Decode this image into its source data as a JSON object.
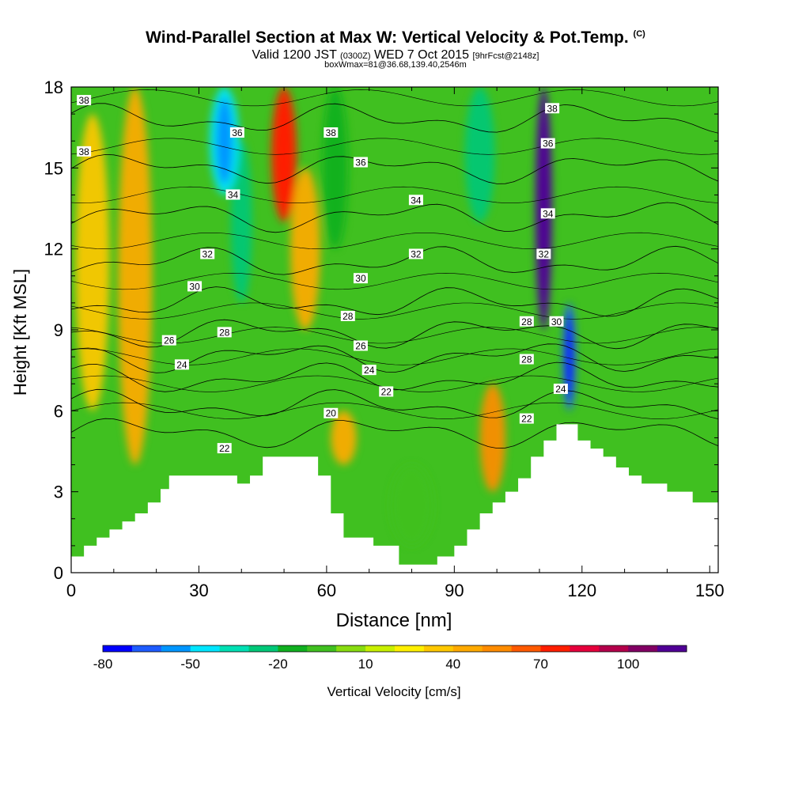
{
  "header": {
    "title": "Wind-Parallel Section at Max W: Vertical Velocity & Pot.Temp.",
    "copyright": "(C)",
    "valid_prefix": "Valid 1200 JST",
    "valid_zulu": "(0300Z)",
    "valid_date": "WED 7 Oct 2015",
    "forecast": "[9hrFcst@2148z]",
    "boxwmax": "boxWmax=81@36.68,139.40,2546m"
  },
  "chart_data": {
    "type": "heatmap",
    "title": "Wind-Parallel Section at Max W: Vertical Velocity & Pot.Temp.",
    "xlabel": "Distance [nm]",
    "ylabel": "Height [Kft MSL]",
    "xlim": [
      0,
      152
    ],
    "ylim": [
      0,
      18
    ],
    "x_ticks": [
      "0",
      "30",
      "60",
      "90",
      "120",
      "150"
    ],
    "y_ticks": [
      "0",
      "3",
      "6",
      "9",
      "12",
      "15",
      "18"
    ],
    "colorbar": {
      "label": "Vertical Velocity [cm/s]",
      "tick_labels": [
        "-80",
        "-50",
        "-20",
        "10",
        "40",
        "70",
        "100"
      ],
      "colors": [
        "#0000ff",
        "#1e5cff",
        "#0096ff",
        "#00e6ff",
        "#00e0b4",
        "#00c878",
        "#10b020",
        "#40c020",
        "#88dc10",
        "#c8f000",
        "#fff000",
        "#ffc800",
        "#ffaa00",
        "#ff8c00",
        "#ff5a00",
        "#ff1e00",
        "#e6003c",
        "#b4004b",
        "#820064",
        "#500096"
      ]
    },
    "terrain_kft": [
      [
        0,
        0.6
      ],
      [
        3,
        0.6
      ],
      [
        3,
        1.0
      ],
      [
        6,
        1.0
      ],
      [
        6,
        1.3
      ],
      [
        9,
        1.3
      ],
      [
        9,
        1.6
      ],
      [
        12,
        1.6
      ],
      [
        12,
        1.9
      ],
      [
        15,
        1.9
      ],
      [
        15,
        2.2
      ],
      [
        18,
        2.2
      ],
      [
        18,
        2.6
      ],
      [
        21,
        2.6
      ],
      [
        21,
        3.1
      ],
      [
        23,
        3.1
      ],
      [
        23,
        3.6
      ],
      [
        39,
        3.6
      ],
      [
        39,
        3.3
      ],
      [
        42,
        3.3
      ],
      [
        42,
        3.6
      ],
      [
        45,
        3.6
      ],
      [
        45,
        4.3
      ],
      [
        58,
        4.3
      ],
      [
        58,
        3.6
      ],
      [
        61,
        3.6
      ],
      [
        61,
        2.2
      ],
      [
        64,
        2.2
      ],
      [
        64,
        1.3
      ],
      [
        71,
        1.3
      ],
      [
        71,
        1.0
      ],
      [
        77,
        1.0
      ],
      [
        77,
        0.3
      ],
      [
        86,
        0.3
      ],
      [
        86,
        0.6
      ],
      [
        90,
        0.6
      ],
      [
        90,
        1.0
      ],
      [
        93,
        1.0
      ],
      [
        93,
        1.6
      ],
      [
        96,
        1.6
      ],
      [
        96,
        2.2
      ],
      [
        99,
        2.2
      ],
      [
        99,
        2.6
      ],
      [
        102,
        2.6
      ],
      [
        102,
        3.0
      ],
      [
        105,
        3.0
      ],
      [
        105,
        3.5
      ],
      [
        108,
        3.5
      ],
      [
        108,
        4.3
      ],
      [
        111,
        4.3
      ],
      [
        111,
        4.9
      ],
      [
        114,
        4.9
      ],
      [
        114,
        5.5
      ],
      [
        119,
        5.5
      ],
      [
        119,
        4.9
      ],
      [
        122,
        4.9
      ],
      [
        122,
        4.6
      ],
      [
        125,
        4.6
      ],
      [
        125,
        4.3
      ],
      [
        128,
        4.3
      ],
      [
        128,
        3.9
      ],
      [
        131,
        3.9
      ],
      [
        131,
        3.6
      ],
      [
        134,
        3.6
      ],
      [
        134,
        3.3
      ],
      [
        140,
        3.3
      ],
      [
        140,
        3.0
      ],
      [
        146,
        3.0
      ],
      [
        146,
        2.6
      ],
      [
        152,
        2.6
      ]
    ],
    "vertical_velocity_features": [
      {
        "x": 5,
        "y_from": 6,
        "y_to": 17,
        "width": 8,
        "w": 25
      },
      {
        "x": 15,
        "y_from": 4,
        "y_to": 18,
        "width": 8,
        "w": 30
      },
      {
        "x": 36,
        "y_from": 14,
        "y_to": 18,
        "width": 7,
        "w": -60
      },
      {
        "x": 40,
        "y_from": 10,
        "y_to": 16,
        "width": 5,
        "w": -40
      },
      {
        "x": 50,
        "y_from": 13,
        "y_to": 18,
        "width": 6,
        "w": 60
      },
      {
        "x": 55,
        "y_from": 9,
        "y_to": 15,
        "width": 7,
        "w": 30
      },
      {
        "x": 62,
        "y_from": 12,
        "y_to": 18,
        "width": 6,
        "w": -30
      },
      {
        "x": 64,
        "y_from": 4,
        "y_to": 6,
        "width": 6,
        "w": 35
      },
      {
        "x": 80,
        "y_from": 1,
        "y_to": 4,
        "width": 10,
        "w": -15
      },
      {
        "x": 96,
        "y_from": 13,
        "y_to": 18,
        "width": 7,
        "w": -40
      },
      {
        "x": 99,
        "y_from": 3,
        "y_to": 7,
        "width": 6,
        "w": 40
      },
      {
        "x": 111,
        "y_from": 9,
        "y_to": 18,
        "width": 4,
        "w": 110
      },
      {
        "x": 117,
        "y_from": 6,
        "y_to": 10,
        "width": 3,
        "w": -80
      }
    ],
    "potential_temperature_contours": [
      {
        "label": "20",
        "level_kft": 5.2
      },
      {
        "label": "22",
        "level_kft": 6.2
      },
      {
        "label": "24",
        "level_kft": 7.2
      },
      {
        "label": "26",
        "level_kft": 8.0
      },
      {
        "label": "28",
        "level_kft": 8.9
      },
      {
        "label": "30",
        "level_kft": 10.0
      },
      {
        "label": "32",
        "level_kft": 11.5
      },
      {
        "label": "34",
        "level_kft": 13.2
      },
      {
        "label": "36",
        "level_kft": 15.0
      },
      {
        "label": "38",
        "level_kft": 16.8
      }
    ],
    "contour_labels": [
      {
        "text": "38",
        "x": 3,
        "y": 17.5
      },
      {
        "text": "38",
        "x": 3,
        "y": 15.6
      },
      {
        "text": "36",
        "x": 39,
        "y": 16.3
      },
      {
        "text": "38",
        "x": 61,
        "y": 16.3
      },
      {
        "text": "36",
        "x": 68,
        "y": 15.2
      },
      {
        "text": "34",
        "x": 38,
        "y": 14.0
      },
      {
        "text": "34",
        "x": 81,
        "y": 13.8
      },
      {
        "text": "32",
        "x": 32,
        "y": 11.8
      },
      {
        "text": "32",
        "x": 81,
        "y": 11.8
      },
      {
        "text": "30",
        "x": 29,
        "y": 10.6
      },
      {
        "text": "30",
        "x": 68,
        "y": 10.9
      },
      {
        "text": "28",
        "x": 36,
        "y": 8.9
      },
      {
        "text": "28",
        "x": 65,
        "y": 9.5
      },
      {
        "text": "26",
        "x": 23,
        "y": 8.6
      },
      {
        "text": "26",
        "x": 68,
        "y": 8.4
      },
      {
        "text": "24",
        "x": 26,
        "y": 7.7
      },
      {
        "text": "24",
        "x": 70,
        "y": 7.5
      },
      {
        "text": "22",
        "x": 74,
        "y": 6.7
      },
      {
        "text": "20",
        "x": 61,
        "y": 5.9
      },
      {
        "text": "22",
        "x": 36,
        "y": 4.6
      },
      {
        "text": "38",
        "x": 113,
        "y": 17.2
      },
      {
        "text": "36",
        "x": 112,
        "y": 15.9
      },
      {
        "text": "34",
        "x": 112,
        "y": 13.3
      },
      {
        "text": "32",
        "x": 111,
        "y": 11.8
      },
      {
        "text": "30",
        "x": 114,
        "y": 9.3
      },
      {
        "text": "28",
        "x": 107,
        "y": 9.3
      },
      {
        "text": "28",
        "x": 107,
        "y": 7.9
      },
      {
        "text": "24",
        "x": 115,
        "y": 6.8
      },
      {
        "text": "22",
        "x": 107,
        "y": 5.7
      }
    ]
  }
}
